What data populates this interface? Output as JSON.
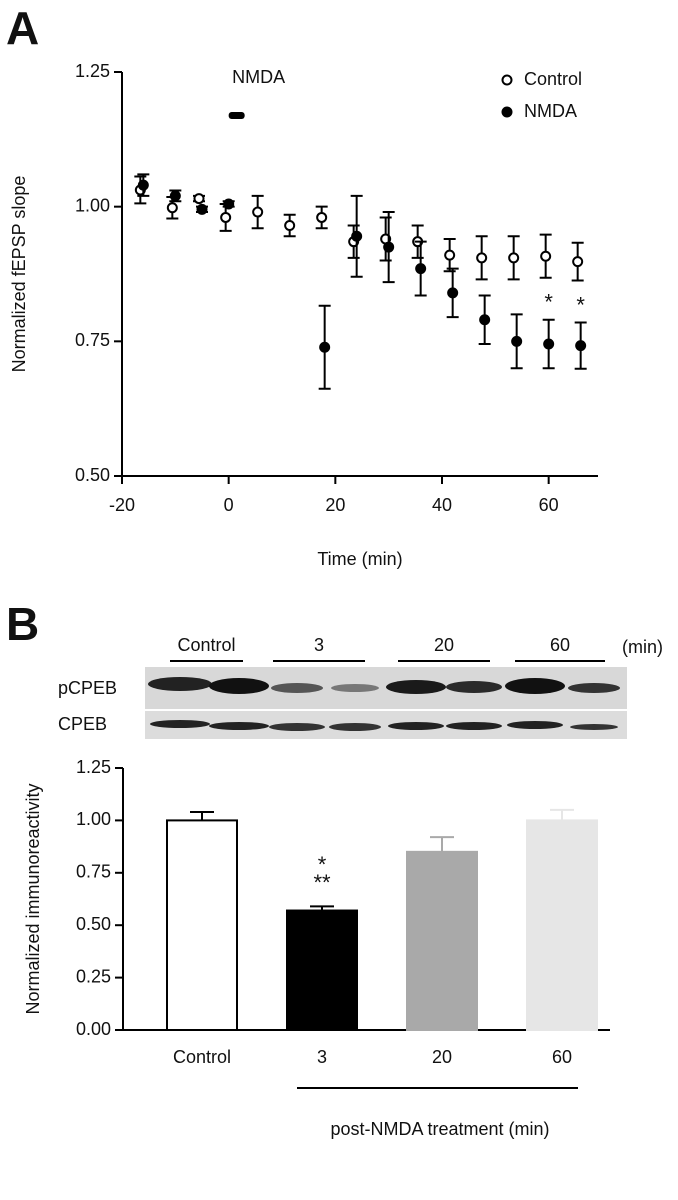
{
  "chart_data": [
    {
      "type": "scatter",
      "panel": "A",
      "x_label": "Time (min)",
      "y_label": "Normalized fEPSP slope",
      "x": [
        -16,
        -10,
        -5,
        0,
        6,
        12,
        18,
        24,
        30,
        36,
        42,
        48,
        54,
        60,
        66
      ],
      "series": [
        {
          "name": "Control",
          "color": "#000000",
          "marker": "open",
          "values": [
            1.031,
            0.998,
            1.015,
            0.98,
            0.99,
            0.965,
            0.98,
            0.935,
            0.94,
            0.935,
            0.91,
            0.905,
            0.905,
            0.908,
            0.898
          ],
          "errors": [
            0.025,
            0.02,
            0.005,
            0.025,
            0.03,
            0.02,
            0.02,
            0.03,
            0.04,
            0.03,
            0.03,
            0.04,
            0.04,
            0.04,
            0.035
          ]
        },
        {
          "name": "NMDA",
          "color": "#000000",
          "marker": "filled",
          "values": [
            1.04,
            1.02,
            0.995,
            1.005,
            null,
            null,
            0.739,
            0.945,
            0.925,
            0.885,
            0.84,
            0.79,
            0.75,
            0.745,
            0.742
          ],
          "errors": [
            0.02,
            0.01,
            0.005,
            0.005,
            null,
            null,
            0.077,
            0.075,
            0.065,
            0.05,
            0.045,
            0.045,
            0.05,
            0.045,
            0.043
          ],
          "significance": [
            null,
            null,
            null,
            null,
            null,
            null,
            null,
            null,
            null,
            null,
            null,
            null,
            null,
            "*",
            "*"
          ]
        }
      ],
      "application": {
        "label": "NMDA",
        "start": 0,
        "end": 3
      },
      "xlim": [
        -20,
        70
      ],
      "xticks": [
        -20,
        0,
        20,
        40,
        60
      ],
      "ylim": [
        0.5,
        1.25
      ],
      "yticks": [
        {
          "value": 0.5,
          "label": "0.50"
        },
        {
          "value": 0.75,
          "label": "0.75"
        },
        {
          "value": 1.0,
          "label": "1.00"
        },
        {
          "value": 1.25,
          "label": "1.25"
        }
      ],
      "legend": "top-right",
      "grid": false
    },
    {
      "type": "bar",
      "panel": "B",
      "blot": {
        "lanes": [
          "Control",
          "3",
          "20",
          "60"
        ],
        "unit": "(min)",
        "rows": [
          "pCPEB",
          "CPEB"
        ]
      },
      "y_label": "Normalized immunoreactivity",
      "x_label": "post-NMDA treatment  (min)",
      "categories": [
        "Control",
        "3",
        "20",
        "60"
      ],
      "values": [
        1.0,
        0.57,
        0.85,
        1.0
      ],
      "errors": [
        0.04,
        0.02,
        0.07,
        0.05
      ],
      "colors": [
        "#ffffff",
        "#000000",
        "#a9a9a9",
        "#e6e6e6"
      ],
      "significance": [
        null,
        [
          "*",
          "**"
        ],
        null,
        null
      ],
      "ylim": [
        0,
        1.25
      ],
      "yticks": [
        {
          "value": 0,
          "label": "0.00"
        },
        {
          "value": 0.25,
          "label": "0.25"
        },
        {
          "value": 0.5,
          "label": "0.50"
        },
        {
          "value": 0.75,
          "label": "0.75"
        },
        {
          "value": 1.0,
          "label": "1.00"
        },
        {
          "value": 1.25,
          "label": "1.25"
        }
      ],
      "grid": false
    }
  ]
}
